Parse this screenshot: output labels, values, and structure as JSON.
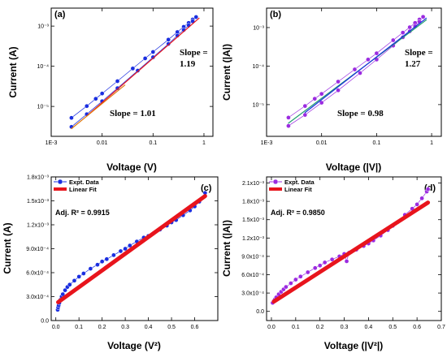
{
  "colors": {
    "blue": "#1a2ee0",
    "purple": "#9b2be0",
    "red": "#e8141c",
    "orange": "#e07a10",
    "green": "#1f9e6e",
    "axis": "#000000"
  },
  "chart_data": [
    {
      "panel": "(a)",
      "type": "scatter",
      "xscale": "log",
      "yscale": "log",
      "xlim": [
        0.001,
        1.5
      ],
      "ylim": [
        1.8e-06,
        0.0028
      ],
      "xticks": [
        0.001,
        0.01,
        0.1,
        1
      ],
      "xticklabels": [
        "1E-3",
        "0.01",
        "0.1",
        "1"
      ],
      "yticks": [
        1e-05,
        0.0001,
        0.001
      ],
      "yticklabels": [
        "10⁻⁵",
        "10⁻⁴",
        "10⁻³"
      ],
      "xlabel": "Voltage (V)",
      "ylabel": "Current (A)",
      "annotations": [
        "Slope =",
        "1.19",
        "Slope = 1.01"
      ],
      "loop_sweep": true,
      "series": [
        {
          "color": "blue",
          "marker": "circle",
          "up": [
            [
              0.0025,
              5.2e-06
            ],
            [
              0.005,
              1.02e-05
            ],
            [
              0.0075,
              1.55e-05
            ],
            [
              0.01,
              2.1e-05
            ],
            [
              0.02,
              4.25e-05
            ],
            [
              0.04,
              8.8e-05
            ],
            [
              0.07,
              0.000157
            ],
            [
              0.1,
              0.000227
            ],
            [
              0.2,
              0.00046
            ],
            [
              0.3,
              0.00071
            ],
            [
              0.4,
              0.00096
            ],
            [
              0.5,
              0.0012
            ],
            [
              0.6,
              0.00146
            ],
            [
              0.7,
              0.00168
            ]
          ],
          "down": [
            [
              0.7,
              0.00168
            ],
            [
              0.6,
              0.00132
            ],
            [
              0.5,
              0.00104
            ],
            [
              0.4,
              0.0008
            ],
            [
              0.3,
              0.00058
            ],
            [
              0.2,
              0.00036
            ],
            [
              0.1,
              0.000168
            ],
            [
              0.05,
              7.8e-05
            ],
            [
              0.02,
              2.85e-05
            ],
            [
              0.01,
              1.35e-05
            ],
            [
              0.005,
              6.4e-06
            ],
            [
              0.0025,
              3.1e-06
            ]
          ]
        },
        {
          "color": "red",
          "fit": "line",
          "from": [
            0.005,
            5.8e-06
          ],
          "to": [
            0.8,
            0.00157
          ]
        },
        {
          "color": "orange",
          "fit": "line",
          "from": [
            0.0025,
            2.8e-06
          ],
          "to": [
            0.028,
            3.4e-05
          ]
        }
      ]
    },
    {
      "panel": "(b)",
      "type": "scatter",
      "xscale": "log",
      "yscale": "log",
      "xlim": [
        0.001,
        1.5
      ],
      "ylim": [
        1.5e-06,
        0.0032
      ],
      "xticks": [
        0.001,
        0.01,
        0.1,
        1
      ],
      "xticklabels": [
        "1E-3",
        "0.01",
        "0.1",
        "1"
      ],
      "yticks": [
        1e-05,
        0.0001,
        0.001
      ],
      "yticklabels": [
        "10⁻⁵",
        "10⁻⁴",
        "10⁻³"
      ],
      "xlabel": "Voltage (|V|)",
      "ylabel": "Current (|A|)",
      "annotations": [
        "Slope =",
        "1.27",
        "Slope = 0.98"
      ],
      "loop_sweep": true,
      "series": [
        {
          "color": "purple",
          "marker": "circle",
          "up": [
            [
              0.0025,
              4.6e-06
            ],
            [
              0.005,
              9.2e-06
            ],
            [
              0.0075,
              1.42e-05
            ],
            [
              0.01,
              1.9e-05
            ],
            [
              0.02,
              3.95e-05
            ],
            [
              0.04,
              8.2e-05
            ],
            [
              0.07,
              0.000148
            ],
            [
              0.1,
              0.000215
            ],
            [
              0.2,
              0.00047
            ],
            [
              0.3,
              0.00074
            ],
            [
              0.4,
              0.00102
            ],
            [
              0.5,
              0.00132
            ],
            [
              0.6,
              0.00162
            ],
            [
              0.7,
              0.0019
            ]
          ],
          "down": [
            [
              0.7,
              0.0019
            ],
            [
              0.6,
              0.00142
            ],
            [
              0.5,
              0.00108
            ],
            [
              0.4,
              0.0008
            ],
            [
              0.3,
              0.00056
            ],
            [
              0.2,
              0.00034
            ],
            [
              0.1,
              0.000148
            ],
            [
              0.05,
              6.6e-05
            ],
            [
              0.02,
              2.35e-05
            ],
            [
              0.01,
              1.12e-05
            ],
            [
              0.005,
              5.4e-06
            ],
            [
              0.0025,
              2.8e-06
            ]
          ]
        },
        {
          "color": "green",
          "fit": "line",
          "from": [
            0.0025,
            3.3e-06
          ],
          "to": [
            0.8,
            0.00158
          ]
        },
        {
          "color": "blue",
          "fit": "line",
          "from": [
            0.005,
            6.2e-06
          ],
          "to": [
            0.8,
            0.00175
          ]
        }
      ]
    },
    {
      "panel": "(c)",
      "type": "scatter",
      "xlim": [
        -0.02,
        0.7
      ],
      "ylim": [
        0,
        0.0018
      ],
      "xticks": [
        0.0,
        0.1,
        0.2,
        0.3,
        0.4,
        0.5,
        0.6
      ],
      "xticklabels": [
        "0.0",
        "0.1",
        "0.2",
        "0.3",
        "0.4",
        "0.5",
        "0.6"
      ],
      "yticks": [
        0.0,
        0.0003,
        0.0006,
        0.0009,
        0.0012,
        0.0015,
        0.0018
      ],
      "yticklabels": [
        "0.0",
        "3.0x10⁻⁴",
        "6.0x10⁻⁴",
        "9.0x10⁻⁴",
        "1.2x10⁻³",
        "1.5x10⁻³",
        "1.8x10⁻³"
      ],
      "xlabel": "Voltage (V²)",
      "ylabel": "Current (A)",
      "annotation": "Adj. R² = 0.9915",
      "legend": [
        "Expt. Data",
        "Linear Fit"
      ],
      "series": [
        {
          "name": "Expt. Data",
          "color": "blue",
          "marker": "circle",
          "x": [
            0.008,
            0.01,
            0.012,
            0.015,
            0.02,
            0.025,
            0.03,
            0.04,
            0.05,
            0.06,
            0.08,
            0.1,
            0.12,
            0.15,
            0.18,
            0.2,
            0.22,
            0.25,
            0.28,
            0.3,
            0.32,
            0.35,
            0.38,
            0.4,
            0.42,
            0.45,
            0.48,
            0.5,
            0.52,
            0.55,
            0.58,
            0.6,
            0.62,
            0.64,
            0.645
          ],
          "y": [
            0.000135,
            0.000165,
            0.00019,
            0.00022,
            0.00026,
            0.0003,
            0.00033,
            0.00038,
            0.00042,
            0.00045,
            0.0005,
            0.00055,
            0.00059,
            0.00065,
            0.0007,
            0.00074,
            0.00077,
            0.00082,
            0.00087,
            0.0009,
            0.00094,
            0.00099,
            0.00104,
            0.00106,
            0.00109,
            0.00114,
            0.00119,
            0.00123,
            0.00126,
            0.00132,
            0.00138,
            0.00143,
            0.00149,
            0.00155,
            0.0016
          ]
        },
        {
          "name": "Linear Fit",
          "color": "red",
          "fit": "line",
          "from": [
            0.01,
            0.00023
          ],
          "to": [
            0.645,
            0.00156
          ]
        }
      ]
    },
    {
      "panel": "(d)",
      "type": "scatter",
      "xlim": [
        -0.02,
        0.7
      ],
      "ylim": [
        -0.00015,
        0.0022
      ],
      "xticks": [
        0.0,
        0.1,
        0.2,
        0.3,
        0.4,
        0.5,
        0.6,
        0.7
      ],
      "xticklabels": [
        "0.0",
        "0.1",
        "0.2",
        "0.3",
        "0.4",
        "0.5",
        "0.6",
        "0.7"
      ],
      "yticks": [
        0.0,
        0.0003,
        0.0006,
        0.0009,
        0.0012,
        0.0015,
        0.0018,
        0.0021
      ],
      "yticklabels": [
        "0.0",
        "3.0x10⁻⁴",
        "6.0x10⁻⁴",
        "9.0x10⁻⁴",
        "1.2x10⁻³",
        "1.5x10⁻³",
        "1.8x10⁻³",
        "2.1x10⁻³"
      ],
      "xlabel": "Voltage (|V²|)",
      "ylabel": "Current (|A|)",
      "annotation": "Adj. R² = 0.9850",
      "legend": [
        "Expt. Data",
        "Linear Fit"
      ],
      "series": [
        {
          "name": "Expt. Data",
          "color": "purple",
          "marker": "circle",
          "x": [
            0.005,
            0.01,
            0.015,
            0.02,
            0.03,
            0.04,
            0.05,
            0.06,
            0.08,
            0.1,
            0.12,
            0.15,
            0.18,
            0.2,
            0.22,
            0.25,
            0.28,
            0.3,
            0.31,
            0.32,
            0.35,
            0.38,
            0.4,
            0.42,
            0.45,
            0.48,
            0.5,
            0.52,
            0.55,
            0.58,
            0.6,
            0.62,
            0.64,
            0.645
          ],
          "y": [
            0.00014,
            0.00017,
            0.0002,
            0.00023,
            0.00028,
            0.00032,
            0.00036,
            0.0004,
            0.00046,
            0.00052,
            0.00057,
            0.00064,
            0.00071,
            0.00075,
            0.0008,
            0.00085,
            0.0009,
            0.00094,
            0.00082,
            0.00096,
            0.00101,
            0.00107,
            0.00111,
            0.00116,
            0.00124,
            0.00133,
            0.0014,
            0.00146,
            0.00158,
            0.00168,
            0.00175,
            0.00185,
            0.00196,
            0.002
          ]
        },
        {
          "name": "Linear Fit",
          "color": "red",
          "fit": "line",
          "from": [
            0.01,
            0.00016
          ],
          "to": [
            0.645,
            0.00178
          ]
        }
      ]
    }
  ]
}
